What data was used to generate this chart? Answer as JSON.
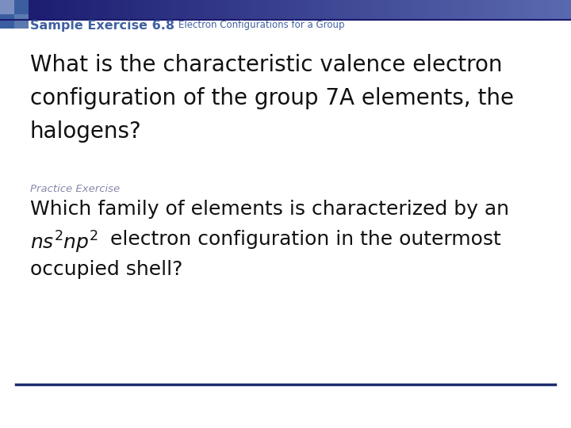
{
  "bg_color": "#ffffff",
  "header_bar_color_left": "#1a1a6e",
  "header_bar_color_right": "#4a4a9e",
  "title_label": "Sample Exercise 6.8",
  "title_sub": "Electron Configurations for a Group",
  "title_color": "#4060A0",
  "title_fontsize": 11.5,
  "title_sub_fontsize": 8.5,
  "main_question_line1": "What is the characteristic valence electron",
  "main_question_line2": "configuration of the group 7A elements, the",
  "main_question_line3": "halogens?",
  "main_fontsize": 20,
  "main_color": "#111111",
  "practice_label": "Practice Exercise",
  "practice_label_color": "#8888AA",
  "practice_label_fontsize": 9.5,
  "practice_line1": "Which family of elements is characterized by an",
  "practice_line2_rest": " electron configuration in the outermost",
  "practice_line3": "occupied shell?",
  "practice_fontsize": 18,
  "practice_color": "#111111",
  "bottom_line_color": "#1F2D6E",
  "corner_sq1_color": "#7A8FC0",
  "corner_sq2_color": "#3A5EA0",
  "corner_sq3_color": "#3A5EA0",
  "corner_sq4_color": "#5A7AB0"
}
